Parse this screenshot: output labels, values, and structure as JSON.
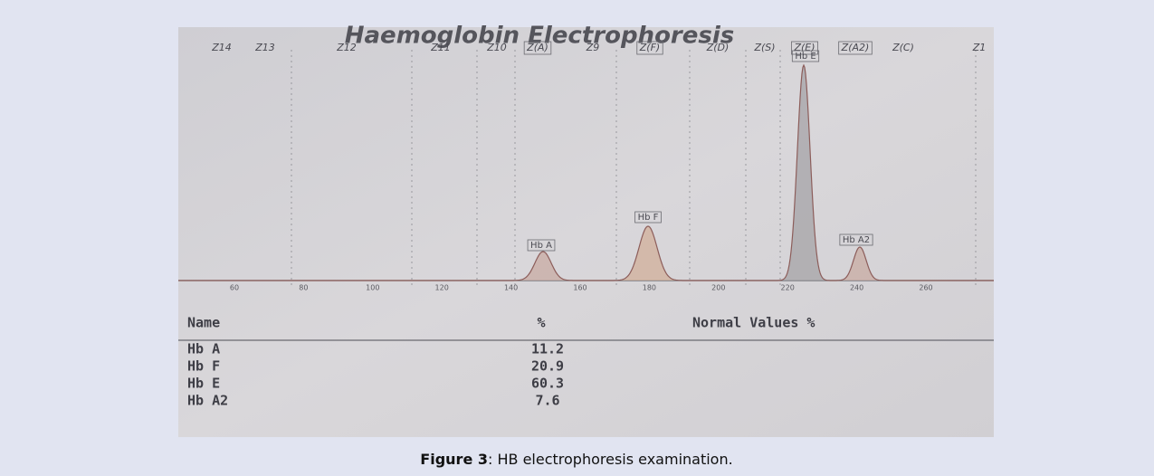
{
  "figure": {
    "title": "Haemoglobin Electrophoresis",
    "zones": [
      "Z14",
      "Z13",
      "Z12",
      "Z11",
      "Z10",
      "Z(A)",
      "Z9",
      "Z(F)",
      "Z(D)",
      "Z(S)",
      "Z(E)",
      "Z(A2)",
      "Z(C)",
      "Z1"
    ],
    "peaks": [
      "Hb A",
      "Hb F",
      "Hb E",
      "Hb A2"
    ],
    "axis_ticks": [
      60,
      80,
      100,
      120,
      140,
      160,
      180,
      200,
      220,
      240,
      260
    ],
    "table": {
      "header": [
        "Name",
        "%",
        "Normal Values %"
      ],
      "rows": [
        [
          "Hb A",
          11.2
        ],
        [
          "Hb F",
          20.9
        ],
        [
          "Hb E",
          60.3
        ],
        [
          "Hb A2",
          7.6
        ]
      ]
    }
  },
  "caption": {
    "label": "Figure 3",
    "text": ": HB electrophoresis examination."
  }
}
